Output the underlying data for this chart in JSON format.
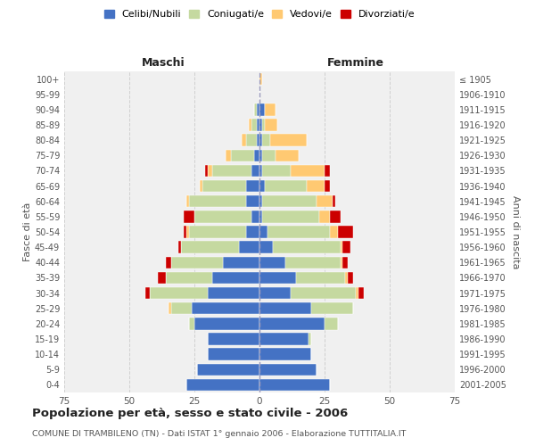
{
  "age_groups": [
    "0-4",
    "5-9",
    "10-14",
    "15-19",
    "20-24",
    "25-29",
    "30-34",
    "35-39",
    "40-44",
    "45-49",
    "50-54",
    "55-59",
    "60-64",
    "65-69",
    "70-74",
    "75-79",
    "80-84",
    "85-89",
    "90-94",
    "95-99",
    "100+"
  ],
  "birth_years": [
    "2001-2005",
    "1996-2000",
    "1991-1995",
    "1986-1990",
    "1981-1985",
    "1976-1980",
    "1971-1975",
    "1966-1970",
    "1961-1965",
    "1956-1960",
    "1951-1955",
    "1946-1950",
    "1941-1945",
    "1936-1940",
    "1931-1935",
    "1926-1930",
    "1921-1925",
    "1916-1920",
    "1911-1915",
    "1906-1910",
    "≤ 1905"
  ],
  "male_celibi": [
    28,
    24,
    20,
    20,
    25,
    26,
    20,
    18,
    14,
    8,
    5,
    3,
    5,
    5,
    3,
    2,
    1,
    1,
    1,
    0,
    0
  ],
  "male_coniugati": [
    0,
    0,
    0,
    0,
    2,
    8,
    22,
    18,
    20,
    22,
    22,
    22,
    22,
    17,
    15,
    9,
    4,
    2,
    1,
    0,
    0
  ],
  "male_vedovi": [
    0,
    0,
    0,
    0,
    0,
    1,
    0,
    0,
    0,
    0,
    1,
    0,
    1,
    1,
    2,
    2,
    2,
    1,
    0,
    0,
    0
  ],
  "male_divorziati": [
    0,
    0,
    0,
    0,
    0,
    0,
    2,
    3,
    2,
    1,
    1,
    4,
    0,
    0,
    1,
    0,
    0,
    0,
    0,
    0,
    0
  ],
  "female_celibi": [
    27,
    22,
    20,
    19,
    25,
    20,
    12,
    14,
    10,
    5,
    3,
    1,
    1,
    2,
    1,
    1,
    1,
    1,
    2,
    0,
    0
  ],
  "female_coniugati": [
    0,
    0,
    0,
    1,
    5,
    16,
    25,
    19,
    21,
    26,
    24,
    22,
    21,
    16,
    11,
    5,
    3,
    1,
    0,
    0,
    0
  ],
  "female_vedovi": [
    0,
    0,
    0,
    0,
    0,
    0,
    1,
    1,
    1,
    1,
    3,
    4,
    6,
    7,
    13,
    9,
    14,
    5,
    4,
    0,
    1
  ],
  "female_divorziati": [
    0,
    0,
    0,
    0,
    0,
    0,
    2,
    2,
    2,
    3,
    6,
    4,
    1,
    2,
    2,
    0,
    0,
    0,
    0,
    0,
    0
  ],
  "color_celibi": "#4472c4",
  "color_coniugati": "#c5d9a0",
  "color_vedovi": "#ffc972",
  "color_divorziati": "#cc0000",
  "title": "Popolazione per età, sesso e stato civile - 2006",
  "subtitle": "COMUNE DI TRAMBILENO (TN) - Dati ISTAT 1° gennaio 2006 - Elaborazione TUTTITALIA.IT",
  "ylabel_left": "Fasce di età",
  "ylabel_right": "Anni di nascita",
  "xlabel_left": "Maschi",
  "xlabel_right": "Femmine",
  "xlim": 75,
  "bg_color": "#ffffff",
  "grid_color": "#cccccc"
}
